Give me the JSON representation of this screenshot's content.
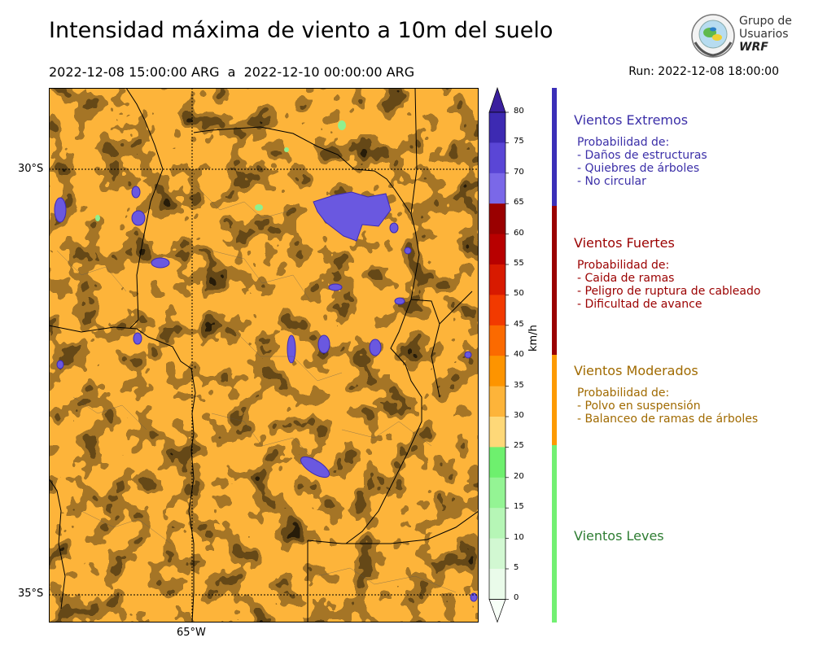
{
  "title": "Intensidad máxima de viento a 10m del suelo",
  "dates": "2022-12-08 15:00:00 ARG  a  2022-12-10 00:00:00 ARG",
  "run": "Run: 2022-12-08 18:00:00",
  "logo": {
    "line1": "Grupo de",
    "line2": "Usuarios",
    "line3": "WRF"
  },
  "map": {
    "lat_labels": [
      "30°S",
      "35°S"
    ],
    "lon_labels": [
      "65°W"
    ]
  },
  "colorbar": {
    "unit": "km/h",
    "ticks": [
      "80",
      "75",
      "70",
      "65",
      "60",
      "55",
      "50",
      "45",
      "40",
      "35",
      "30",
      "25",
      "20",
      "15",
      "10",
      "5",
      "0"
    ],
    "colors": [
      "#3d2ab2",
      "#5a46d6",
      "#7a68e8",
      "#9a0000",
      "#b80000",
      "#d81a00",
      "#f23a00",
      "#fb6a00",
      "#fd9400",
      "#fdb43a",
      "#fed878",
      "#6ef06e",
      "#94f494",
      "#b6f6b6",
      "#d2f8d2",
      "#eafbea"
    ]
  },
  "categories": [
    {
      "title": "Vientos Extremos",
      "color": "#3b2fa8",
      "lines": [
        "Probabilidad de:",
        "- Daños de estructuras",
        "- Quiebres de árboles",
        "- No circular"
      ]
    },
    {
      "title": "Vientos Fuertes",
      "color": "#9b0000",
      "lines": [
        "Probabilidad de:",
        "- Caida de ramas",
        "- Peligro de ruptura de cableado",
        "- Dificultad de avance"
      ]
    },
    {
      "title": "Vientos Moderados",
      "color": "#a06a00",
      "lines": [
        "Probabilidad de:",
        "- Polvo en suspensión",
        "- Balanceo de ramas de árboles"
      ]
    },
    {
      "title": "Vientos Leves",
      "color": "#2e7d32",
      "lines": []
    }
  ]
}
